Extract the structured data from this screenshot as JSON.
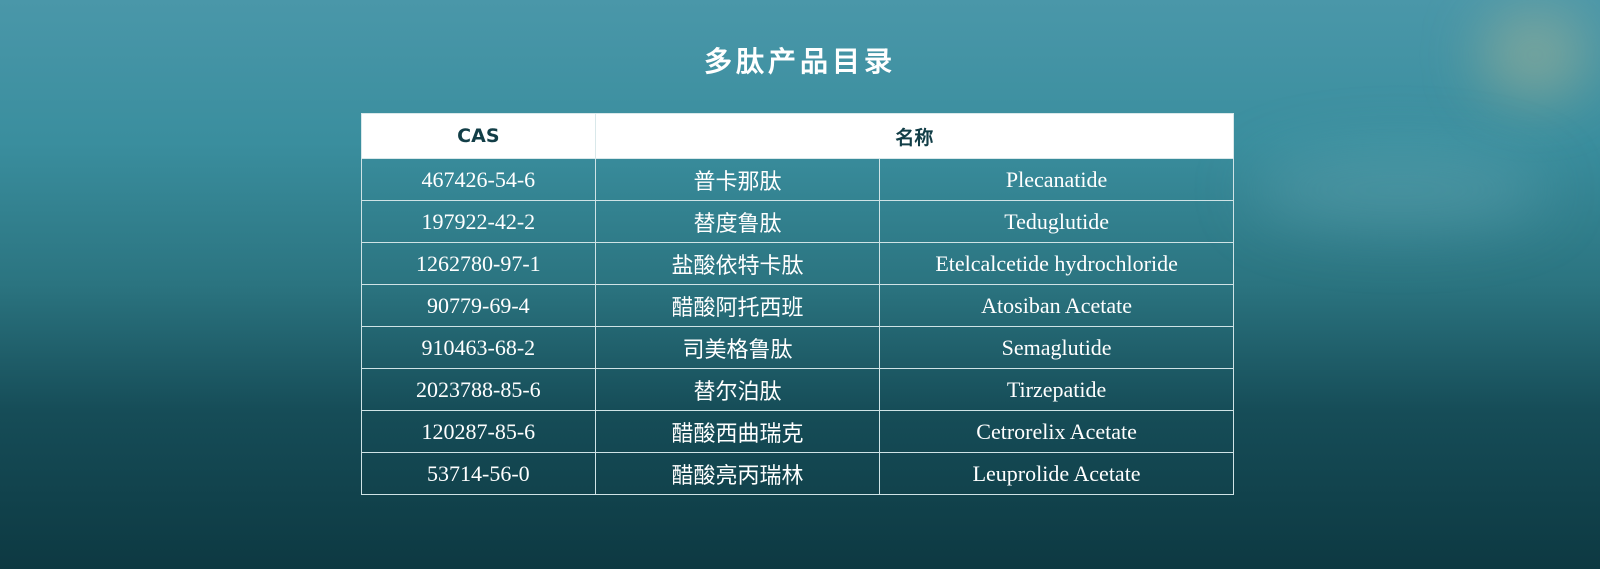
{
  "title": "多肽产品目录",
  "table": {
    "headers": [
      "CAS",
      "名称"
    ],
    "rows": [
      {
        "cas": "467426-54-6",
        "zh": "普卡那肽",
        "en": "Plecanatide"
      },
      {
        "cas": "197922-42-2",
        "zh": "替度鲁肽",
        "en": "Teduglutide"
      },
      {
        "cas": "1262780-97-1",
        "zh": "盐酸依特卡肽",
        "en": "Etelcalcetide hydrochloride"
      },
      {
        "cas": "90779-69-4",
        "zh": "醋酸阿托西班",
        "en": "Atosiban Acetate"
      },
      {
        "cas": "910463-68-2",
        "zh": "司美格鲁肽",
        "en": "Semaglutide"
      },
      {
        "cas": "2023788-85-6",
        "zh": "替尔泊肽",
        "en": "Tirzepatide"
      },
      {
        "cas": "120287-85-6",
        "zh": "醋酸西曲瑞克",
        "en": "Cetrorelix Acetate"
      },
      {
        "cas": "53714-56-0",
        "zh": "醋酸亮丙瑞林",
        "en": "Leuprolide Acetate"
      }
    ]
  },
  "colors": {
    "header_bg": "#ffffff",
    "header_text": "#123e47",
    "bg_top": "#4a97a9",
    "bg_bottom": "#0d3942"
  }
}
